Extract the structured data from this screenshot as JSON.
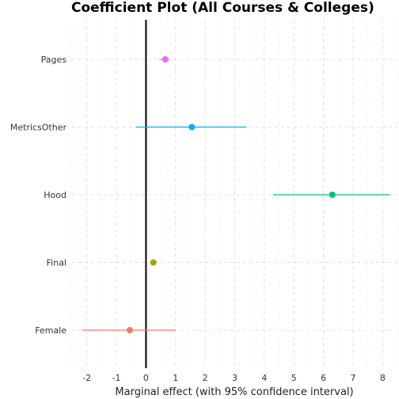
{
  "chart_data": {
    "type": "scatter",
    "title": "Coefficient Plot (All Courses & Colleges)",
    "xlabel": "Marginal effect (with 95% confidence interval)",
    "ylabel": "",
    "xlim": [
      -2.5,
      8.5
    ],
    "x_ticks": [
      -2,
      -1,
      0,
      1,
      2,
      3,
      4,
      5,
      6,
      7,
      8
    ],
    "reference_line_x": 0,
    "grid": true,
    "categories": [
      "Pages",
      "MetricsOther",
      "Hood",
      "Final",
      "Female"
    ],
    "points": [
      {
        "label": "Pages",
        "estimate": 0.65,
        "ci_low": 0.45,
        "ci_high": 0.8,
        "color": "#e76bf3"
      },
      {
        "label": "MetricsOther",
        "estimate": 1.55,
        "ci_low": -0.35,
        "ci_high": 3.4,
        "color": "#00b0f6"
      },
      {
        "label": "Hood",
        "estimate": 6.3,
        "ci_low": 4.3,
        "ci_high": 8.25,
        "color": "#00bf7d"
      },
      {
        "label": "Final",
        "estimate": 0.25,
        "ci_low": 0.2,
        "ci_high": 0.3,
        "color": "#a3a500"
      },
      {
        "label": "Female",
        "estimate": -0.55,
        "ci_low": -2.15,
        "ci_high": 1.0,
        "color": "#f8766d"
      }
    ]
  }
}
